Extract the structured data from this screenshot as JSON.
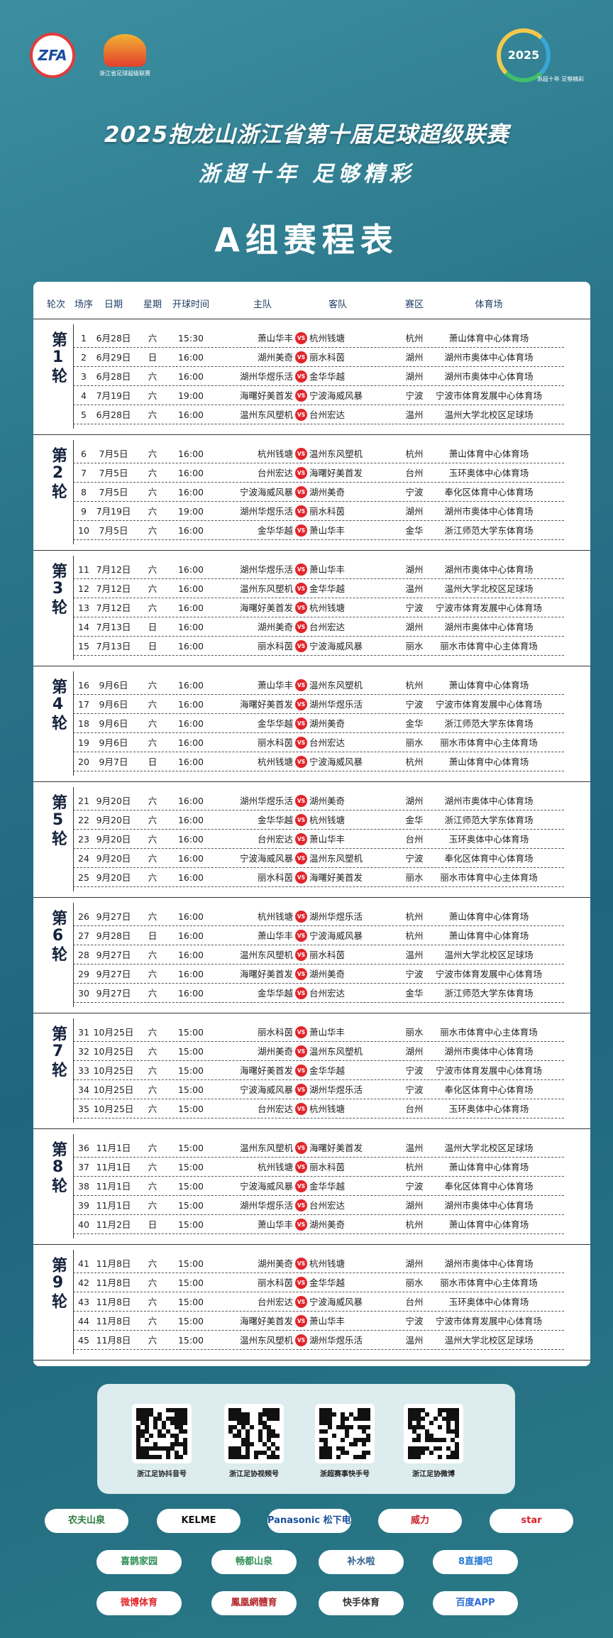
{
  "header": {
    "logo_left": "ZFA",
    "logo_mid_caption": "浙江省足球超级联赛",
    "logo_right_year": "2025",
    "logo_right_caption": "浙超十年 足够精彩",
    "title": "2025抱龙山浙江省第十届足球超级联赛",
    "subtitle": "浙超十年 足够精彩",
    "table_title": "A组赛程表"
  },
  "table": {
    "columns": [
      "轮次",
      "场序",
      "日期",
      "星期",
      "开球时间",
      "主队",
      "客队",
      "赛区",
      "体育场"
    ],
    "vs_label": "VS",
    "rounds": [
      {
        "label": "第1轮",
        "matches": [
          [
            1,
            "6月28日",
            "六",
            "15:30",
            "萧山华丰",
            "杭州钱塘",
            "杭州",
            "萧山体育中心体育场"
          ],
          [
            2,
            "6月29日",
            "日",
            "16:00",
            "湖州美奇",
            "丽水科茵",
            "湖州",
            "湖州市奥体中心体育场"
          ],
          [
            3,
            "6月28日",
            "六",
            "16:00",
            "湖州华煜乐活",
            "金华华越",
            "湖州",
            "湖州市奥体中心体育场"
          ],
          [
            4,
            "7月19日",
            "六",
            "19:00",
            "海曙好美首发",
            "宁波海威风暴",
            "宁波",
            "宁波市体育发展中心体育场"
          ],
          [
            5,
            "6月28日",
            "六",
            "16:00",
            "温州东风塑机",
            "台州宏达",
            "温州",
            "温州大学北校区足球场"
          ]
        ]
      },
      {
        "label": "第2轮",
        "matches": [
          [
            6,
            "7月5日",
            "六",
            "16:00",
            "杭州钱塘",
            "温州东风塑机",
            "杭州",
            "萧山体育中心体育场"
          ],
          [
            7,
            "7月5日",
            "六",
            "16:00",
            "台州宏达",
            "海曙好美首发",
            "台州",
            "玉环奥体中心体育场"
          ],
          [
            8,
            "7月5日",
            "六",
            "16:00",
            "宁波海威风暴",
            "湖州美奇",
            "宁波",
            "奉化区体育中心体育场"
          ],
          [
            9,
            "7月19日",
            "六",
            "19:00",
            "湖州华煜乐活",
            "丽水科茵",
            "湖州",
            "湖州市奥体中心体育场"
          ],
          [
            10,
            "7月5日",
            "六",
            "16:00",
            "金华华越",
            "萧山华丰",
            "金华",
            "浙江师范大学东体育场"
          ]
        ]
      },
      {
        "label": "第3轮",
        "matches": [
          [
            11,
            "7月12日",
            "六",
            "16:00",
            "湖州华煜乐活",
            "萧山华丰",
            "湖州",
            "湖州市奥体中心体育场"
          ],
          [
            12,
            "7月12日",
            "六",
            "16:00",
            "温州东风塑机",
            "金华华越",
            "温州",
            "温州大学北校区足球场"
          ],
          [
            13,
            "7月12日",
            "六",
            "16:00",
            "海曙好美首发",
            "杭州钱塘",
            "宁波",
            "宁波市体育发展中心体育场"
          ],
          [
            14,
            "7月13日",
            "日",
            "16:00",
            "湖州美奇",
            "台州宏达",
            "湖州",
            "湖州市奥体中心体育场"
          ],
          [
            15,
            "7月13日",
            "日",
            "16:00",
            "丽水科茵",
            "宁波海威风暴",
            "丽水",
            "丽水市体育中心主体育场"
          ]
        ]
      },
      {
        "label": "第4轮",
        "matches": [
          [
            16,
            "9月6日",
            "六",
            "16:00",
            "萧山华丰",
            "温州东风塑机",
            "杭州",
            "萧山体育中心体育场"
          ],
          [
            17,
            "9月6日",
            "六",
            "16:00",
            "海曙好美首发",
            "湖州华煜乐活",
            "宁波",
            "宁波市体育发展中心体育场"
          ],
          [
            18,
            "9月6日",
            "六",
            "16:00",
            "金华华越",
            "湖州美奇",
            "金华",
            "浙江师范大学东体育场"
          ],
          [
            19,
            "9月6日",
            "六",
            "16:00",
            "丽水科茵",
            "台州宏达",
            "丽水",
            "丽水市体育中心主体育场"
          ],
          [
            20,
            "9月7日",
            "日",
            "16:00",
            "杭州钱塘",
            "宁波海威风暴",
            "杭州",
            "萧山体育中心体育场"
          ]
        ]
      },
      {
        "label": "第5轮",
        "matches": [
          [
            21,
            "9月20日",
            "六",
            "16:00",
            "湖州华煜乐活",
            "湖州美奇",
            "湖州",
            "湖州市奥体中心体育场"
          ],
          [
            22,
            "9月20日",
            "六",
            "16:00",
            "金华华越",
            "杭州钱塘",
            "金华",
            "浙江师范大学东体育场"
          ],
          [
            23,
            "9月20日",
            "六",
            "16:00",
            "台州宏达",
            "萧山华丰",
            "台州",
            "玉环奥体中心体育场"
          ],
          [
            24,
            "9月20日",
            "六",
            "16:00",
            "宁波海威风暴",
            "温州东风塑机",
            "宁波",
            "奉化区体育中心体育场"
          ],
          [
            25,
            "9月20日",
            "六",
            "16:00",
            "丽水科茵",
            "海曙好美首发",
            "丽水",
            "丽水市体育中心主体育场"
          ]
        ]
      },
      {
        "label": "第6轮",
        "matches": [
          [
            26,
            "9月27日",
            "六",
            "16:00",
            "杭州钱塘",
            "湖州华煜乐活",
            "杭州",
            "萧山体育中心体育场"
          ],
          [
            27,
            "9月28日",
            "日",
            "16:00",
            "萧山华丰",
            "宁波海威风暴",
            "杭州",
            "萧山体育中心体育场"
          ],
          [
            28,
            "9月27日",
            "六",
            "16:00",
            "温州东风塑机",
            "丽水科茵",
            "温州",
            "温州大学北校区足球场"
          ],
          [
            29,
            "9月27日",
            "六",
            "16:00",
            "海曙好美首发",
            "湖州美奇",
            "宁波",
            "宁波市体育发展中心体育场"
          ],
          [
            30,
            "9月27日",
            "六",
            "16:00",
            "金华华越",
            "台州宏达",
            "金华",
            "浙江师范大学东体育场"
          ]
        ]
      },
      {
        "label": "第7轮",
        "matches": [
          [
            31,
            "10月25日",
            "六",
            "15:00",
            "丽水科茵",
            "萧山华丰",
            "丽水",
            "丽水市体育中心主体育场"
          ],
          [
            32,
            "10月25日",
            "六",
            "15:00",
            "湖州美奇",
            "温州东风塑机",
            "湖州",
            "湖州市奥体中心体育场"
          ],
          [
            33,
            "10月25日",
            "六",
            "15:00",
            "海曙好美首发",
            "金华华越",
            "宁波",
            "宁波市体育发展中心体育场"
          ],
          [
            34,
            "10月25日",
            "六",
            "15:00",
            "宁波海威风暴",
            "湖州华煜乐活",
            "宁波",
            "奉化区体育中心体育场"
          ],
          [
            35,
            "10月25日",
            "六",
            "15:00",
            "台州宏达",
            "杭州钱塘",
            "台州",
            "玉环奥体中心体育场"
          ]
        ]
      },
      {
        "label": "第8轮",
        "matches": [
          [
            36,
            "11月1日",
            "六",
            "15:00",
            "温州东风塑机",
            "海曙好美首发",
            "温州",
            "温州大学北校区足球场"
          ],
          [
            37,
            "11月1日",
            "六",
            "15:00",
            "杭州钱塘",
            "丽水科茵",
            "杭州",
            "萧山体育中心体育场"
          ],
          [
            38,
            "11月1日",
            "六",
            "15:00",
            "宁波海威风暴",
            "金华华越",
            "宁波",
            "奉化区体育中心体育场"
          ],
          [
            39,
            "11月1日",
            "六",
            "15:00",
            "湖州华煜乐活",
            "台州宏达",
            "湖州",
            "湖州市奥体中心体育场"
          ],
          [
            40,
            "11月2日",
            "日",
            "15:00",
            "萧山华丰",
            "湖州美奇",
            "杭州",
            "萧山体育中心体育场"
          ]
        ]
      },
      {
        "label": "第9轮",
        "matches": [
          [
            41,
            "11月8日",
            "六",
            "15:00",
            "湖州美奇",
            "杭州钱塘",
            "湖州",
            "湖州市奥体中心体育场"
          ],
          [
            42,
            "11月8日",
            "六",
            "15:00",
            "丽水科茵",
            "金华华越",
            "丽水",
            "丽水市体育中心主体育场"
          ],
          [
            43,
            "11月8日",
            "六",
            "15:00",
            "台州宏达",
            "宁波海威风暴",
            "台州",
            "玉环奥体中心体育场"
          ],
          [
            44,
            "11月8日",
            "六",
            "15:00",
            "海曙好美首发",
            "萧山华丰",
            "宁波",
            "宁波市体育发展中心体育场"
          ],
          [
            45,
            "11月8日",
            "六",
            "15:00",
            "温州东风塑机",
            "湖州华煜乐活",
            "温州",
            "温州大学北校区足球场"
          ]
        ]
      }
    ]
  },
  "qr_codes": [
    "浙江足协抖音号",
    "浙江足协视频号",
    "浙超赛事快手号",
    "浙江足协微博"
  ],
  "sponsors": [
    [
      "农夫山泉",
      "KELME",
      "Panasonic 松下电器",
      "威力",
      "star"
    ],
    [
      "喜鹊家园",
      "畅都山泉",
      "补水啦",
      "8直播吧"
    ],
    [
      "微博体育",
      "鳳凰網體育",
      "快手体育",
      "百度APP"
    ]
  ]
}
